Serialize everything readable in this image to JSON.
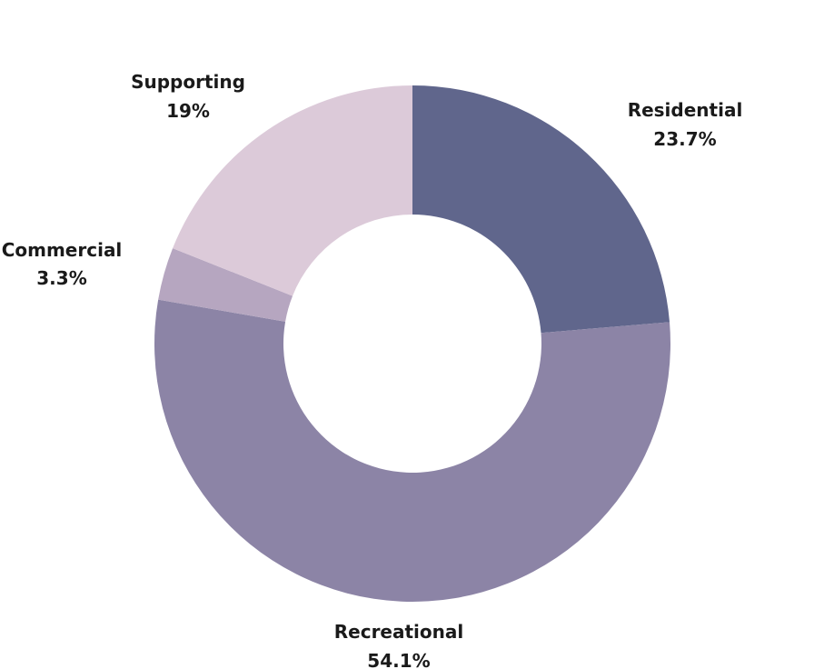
{
  "chart_data": {
    "type": "pie",
    "subtype": "donut",
    "title": "",
    "legend": "none",
    "start_angle_deg": 0,
    "direction": "clockwise",
    "slices": [
      {
        "label": "Residential",
        "value": 23.7,
        "value_label": "23.7%",
        "color": "#60668c"
      },
      {
        "label": "Recreational",
        "value": 54.1,
        "value_label": "54.1%",
        "color": "#8c84a6"
      },
      {
        "label": "Commercial",
        "value": 3.3,
        "value_label": "3.3%",
        "color": "#b6a6c0"
      },
      {
        "label": "Supporting",
        "value": 19,
        "value_label": "19%",
        "color": "#dccad9"
      }
    ]
  }
}
